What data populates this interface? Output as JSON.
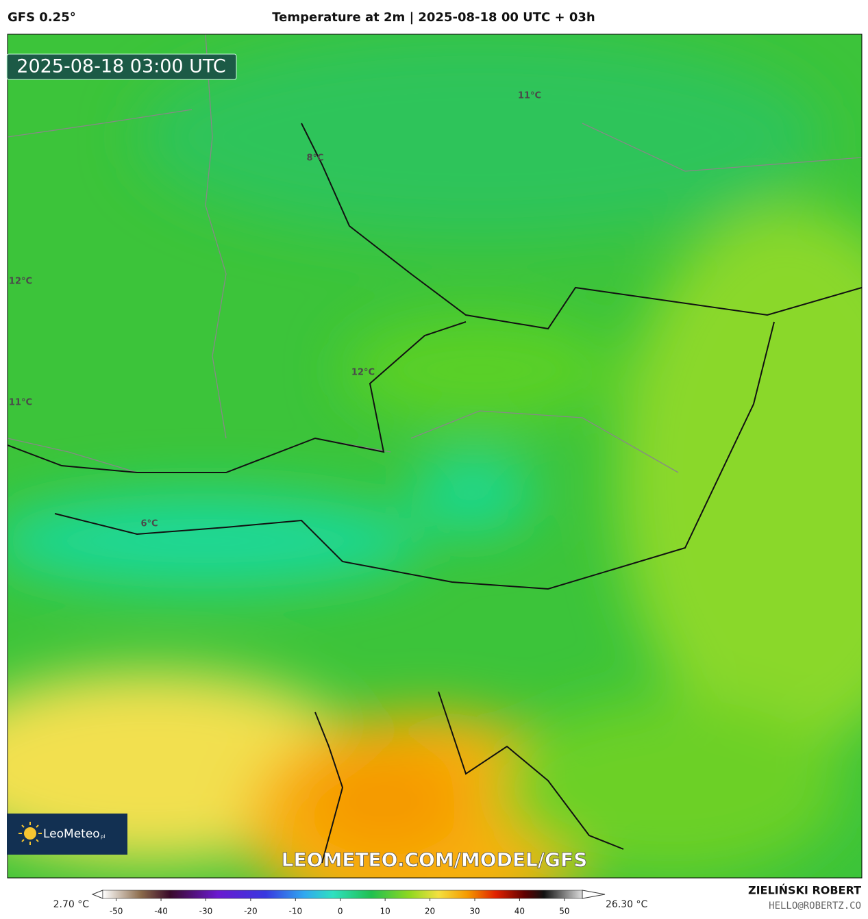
{
  "header": {
    "model": "GFS 0.25°",
    "title": "Temperature at 2m | 2025-08-18 00 UTC + 03h"
  },
  "timestamp": "2025-08-18 03:00 UTC",
  "map": {
    "labels": [
      "11°C",
      "8°C",
      "12°C",
      "12°C",
      "11°C",
      "6°C"
    ]
  },
  "logo": {
    "name": "LeoMeteo",
    "suffix": "pl"
  },
  "watermark": "LEOMETEO.COM/MODEL/GFS",
  "colorbar": {
    "min_label": "2.70 °C",
    "max_label": "26.30 °C",
    "xlim": [
      -53,
      54
    ],
    "ticks": [
      -50,
      -40,
      -30,
      -20,
      -10,
      0,
      10,
      20,
      30,
      40,
      50
    ]
  },
  "author": {
    "name": "ZIELIŃSKI ROBERT",
    "email": "HELLO@ROBERTZ.CO"
  }
}
